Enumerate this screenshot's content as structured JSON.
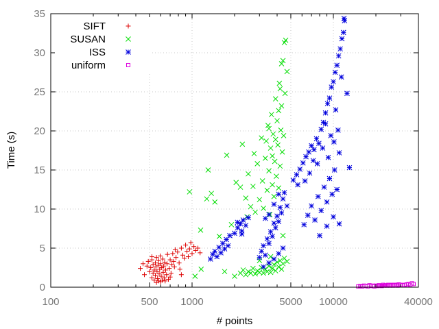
{
  "chart_data": {
    "type": "scatter",
    "title": "",
    "xlabel": "# points",
    "ylabel": "Time (s)",
    "xscale": "log",
    "xlim": [
      100,
      40000
    ],
    "ylim": [
      0,
      35
    ],
    "xticks": [
      100,
      500,
      1000,
      5000,
      10000,
      40000
    ],
    "xtick_labels": [
      "100",
      "500",
      "1000",
      "5000",
      "10000",
      "40000"
    ],
    "yticks": [
      0,
      5,
      10,
      15,
      20,
      25,
      30,
      35
    ],
    "ytick_labels": [
      "0",
      "5",
      "10",
      "15",
      "20",
      "25",
      "30",
      "35"
    ],
    "grid": true,
    "legend_position": "top-left",
    "series": [
      {
        "name": "SIFT",
        "marker": "plus",
        "color": "#dd0000",
        "points": [
          [
            430,
            2.4
          ],
          [
            450,
            3.0
          ],
          [
            460,
            1.6
          ],
          [
            480,
            2.7
          ],
          [
            490,
            3.3
          ],
          [
            500,
            2.0
          ],
          [
            510,
            2.5
          ],
          [
            520,
            1.2
          ],
          [
            520,
            3.5
          ],
          [
            530,
            1.8
          ],
          [
            530,
            2.9
          ],
          [
            540,
            2.2
          ],
          [
            540,
            0.9
          ],
          [
            550,
            3.1
          ],
          [
            550,
            1.5
          ],
          [
            555,
            2.6
          ],
          [
            560,
            0.6
          ],
          [
            560,
            3.8
          ],
          [
            565,
            2.0
          ],
          [
            570,
            1.1
          ],
          [
            575,
            2.8
          ],
          [
            580,
            0.8
          ],
          [
            580,
            3.4
          ],
          [
            585,
            1.7
          ],
          [
            590,
            2.3
          ],
          [
            595,
            4.0
          ],
          [
            600,
            0.7
          ],
          [
            600,
            3.0
          ],
          [
            605,
            1.4
          ],
          [
            610,
            2.5
          ],
          [
            615,
            0.9
          ],
          [
            620,
            3.6
          ],
          [
            625,
            1.9
          ],
          [
            630,
            2.7
          ],
          [
            635,
            1.2
          ],
          [
            640,
            3.2
          ],
          [
            645,
            0.8
          ],
          [
            650,
            2.2
          ],
          [
            660,
            1.6
          ],
          [
            665,
            3.0
          ],
          [
            670,
            4.2
          ],
          [
            680,
            1.0
          ],
          [
            690,
            2.4
          ],
          [
            700,
            3.5
          ],
          [
            710,
            1.8
          ],
          [
            720,
            2.9
          ],
          [
            730,
            4.3
          ],
          [
            740,
            3.3
          ],
          [
            750,
            2.6
          ],
          [
            760,
            4.8
          ],
          [
            770,
            3.8
          ],
          [
            790,
            4.5
          ],
          [
            810,
            3.1
          ],
          [
            820,
            2.3
          ],
          [
            840,
            5.0
          ],
          [
            860,
            4.1
          ],
          [
            880,
            3.7
          ],
          [
            900,
            5.4
          ],
          [
            920,
            4.6
          ],
          [
            940,
            3.9
          ],
          [
            960,
            4.9
          ],
          [
            980,
            5.7
          ],
          [
            1000,
            4.3
          ],
          [
            1030,
            5.2
          ],
          [
            1060,
            4.7
          ],
          [
            1100,
            5.0
          ],
          [
            1140,
            4.4
          ],
          [
            840,
            1.6
          ],
          [
            700,
            1.3
          ],
          [
            520,
            3.9
          ]
        ]
      },
      {
        "name": "SUSAN",
        "marker": "cross",
        "color": "#00dd00",
        "points": [
          [
            960,
            12.2
          ],
          [
            1050,
            1.4
          ],
          [
            1160,
            2.3
          ],
          [
            1150,
            7.3
          ],
          [
            1270,
            11.3
          ],
          [
            1300,
            15.0
          ],
          [
            1370,
            12.0
          ],
          [
            1450,
            10.9
          ],
          [
            1560,
            6.5
          ],
          [
            1760,
            16.9
          ],
          [
            1900,
            8.0
          ],
          [
            2050,
            13.4
          ],
          [
            2200,
            12.8
          ],
          [
            2270,
            18.3
          ],
          [
            2400,
            11.4
          ],
          [
            2450,
            9.0
          ],
          [
            2500,
            14.5
          ],
          [
            2600,
            10.3
          ],
          [
            2700,
            12.9
          ],
          [
            2750,
            17.1
          ],
          [
            2800,
            9.6
          ],
          [
            2900,
            15.8
          ],
          [
            3000,
            11.2
          ],
          [
            3100,
            19.1
          ],
          [
            3150,
            13.6
          ],
          [
            3200,
            10.1
          ],
          [
            3300,
            16.5
          ],
          [
            3350,
            18.7
          ],
          [
            3400,
            12.4
          ],
          [
            3450,
            20.7
          ],
          [
            3500,
            14.9
          ],
          [
            3550,
            9.3
          ],
          [
            3600,
            17.8
          ],
          [
            3650,
            22.1
          ],
          [
            3700,
            13.1
          ],
          [
            3750,
            19.6
          ],
          [
            3800,
            11.6
          ],
          [
            3850,
            16.1
          ],
          [
            3900,
            24.1
          ],
          [
            3950,
            14.2
          ],
          [
            4000,
            21.3
          ],
          [
            4050,
            18.2
          ],
          [
            4100,
            12.7
          ],
          [
            4150,
            26.1
          ],
          [
            4200,
            15.5
          ],
          [
            4250,
            20.1
          ],
          [
            4300,
            23.2
          ],
          [
            4350,
            17.3
          ],
          [
            4400,
            29.0
          ],
          [
            4450,
            19.4
          ],
          [
            4500,
            31.3
          ],
          [
            4550,
            24.8
          ],
          [
            4600,
            31.6
          ],
          [
            4700,
            27.6
          ],
          [
            4300,
            28.6
          ],
          [
            4200,
            25.4
          ],
          [
            4100,
            22.6
          ],
          [
            3900,
            18.9
          ],
          [
            3700,
            16.8
          ],
          [
            3500,
            20.3
          ],
          [
            2200,
            1.8
          ],
          [
            2300,
            2.2
          ],
          [
            2400,
            1.6
          ],
          [
            2500,
            2.0
          ],
          [
            2600,
            1.8
          ],
          [
            2700,
            2.4
          ],
          [
            2800,
            1.7
          ],
          [
            2900,
            2.1
          ],
          [
            3000,
            1.9
          ],
          [
            3100,
            2.5
          ],
          [
            3200,
            1.8
          ],
          [
            3300,
            2.3
          ],
          [
            3400,
            2.0
          ],
          [
            3500,
            2.7
          ],
          [
            3600,
            1.9
          ],
          [
            3700,
            2.4
          ],
          [
            3800,
            2.9
          ],
          [
            3900,
            2.1
          ],
          [
            4000,
            3.2
          ],
          [
            4100,
            2.6
          ],
          [
            4200,
            3.4
          ],
          [
            4300,
            2.3
          ],
          [
            4400,
            3.0
          ],
          [
            4500,
            3.7
          ],
          [
            4700,
            3.3
          ],
          [
            2000,
            1.4
          ],
          [
            1700,
            2.0
          ],
          [
            3000,
            3.4
          ],
          [
            3600,
            3.9
          ],
          [
            4400,
            6.6
          ]
        ]
      },
      {
        "name": "ISS",
        "marker": "star",
        "color": "#0000dd",
        "points": [
          [
            1350,
            3.6
          ],
          [
            1400,
            4.2
          ],
          [
            1450,
            4.6
          ],
          [
            1500,
            3.9
          ],
          [
            1550,
            5.1
          ],
          [
            1600,
            4.4
          ],
          [
            1650,
            5.6
          ],
          [
            1700,
            4.9
          ],
          [
            1750,
            6.1
          ],
          [
            1800,
            5.3
          ],
          [
            1850,
            6.6
          ],
          [
            2000,
            6.9
          ],
          [
            2100,
            7.6
          ],
          [
            2200,
            8.1
          ],
          [
            2250,
            7.2
          ],
          [
            2300,
            8.6
          ],
          [
            2400,
            7.9
          ],
          [
            2500,
            8.9
          ],
          [
            2100,
            8.3
          ],
          [
            2250,
            6.8
          ],
          [
            3000,
            3.8
          ],
          [
            3100,
            4.6
          ],
          [
            3200,
            5.3
          ],
          [
            3300,
            4.1
          ],
          [
            3400,
            6.2
          ],
          [
            3500,
            5.6
          ],
          [
            3600,
            7.1
          ],
          [
            3700,
            6.5
          ],
          [
            3800,
            8.2
          ],
          [
            3900,
            7.6
          ],
          [
            4000,
            9.1
          ],
          [
            4100,
            8.4
          ],
          [
            4200,
            10.2
          ],
          [
            4300,
            9.5
          ],
          [
            4400,
            11.3
          ],
          [
            4500,
            12.1
          ],
          [
            3500,
            9.3
          ],
          [
            3800,
            10.6
          ],
          [
            4100,
            11.9
          ],
          [
            3300,
            8.8
          ],
          [
            3200,
            2.6
          ],
          [
            3500,
            3.1
          ],
          [
            3800,
            3.6
          ],
          [
            4100,
            4.3
          ],
          [
            4400,
            5.0
          ],
          [
            4700,
            10.4
          ],
          [
            5200,
            13.7
          ],
          [
            5500,
            14.4
          ],
          [
            5800,
            15.1
          ],
          [
            6100,
            15.9
          ],
          [
            6400,
            16.7
          ],
          [
            6700,
            17.3
          ],
          [
            7000,
            18.1
          ],
          [
            7300,
            17.6
          ],
          [
            7600,
            19.0
          ],
          [
            7900,
            18.4
          ],
          [
            8200,
            20.2
          ],
          [
            8500,
            21.1
          ],
          [
            8800,
            22.3
          ],
          [
            9100,
            23.5
          ],
          [
            9400,
            24.2
          ],
          [
            9700,
            25.6
          ],
          [
            10000,
            26.3
          ],
          [
            10300,
            27.5
          ],
          [
            10600,
            28.4
          ],
          [
            10900,
            29.6
          ],
          [
            11200,
            30.5
          ],
          [
            11500,
            31.8
          ],
          [
            11800,
            32.6
          ],
          [
            12000,
            34.1
          ],
          [
            11900,
            34.4
          ],
          [
            12500,
            24.8
          ],
          [
            13000,
            15.3
          ],
          [
            6200,
            8.0
          ],
          [
            6600,
            9.2
          ],
          [
            7000,
            10.4
          ],
          [
            7400,
            8.6
          ],
          [
            7800,
            11.6
          ],
          [
            8200,
            9.8
          ],
          [
            8600,
            12.8
          ],
          [
            9000,
            10.9
          ],
          [
            9400,
            13.9
          ],
          [
            9800,
            11.9
          ],
          [
            10200,
            15.0
          ],
          [
            10600,
            12.5
          ],
          [
            11000,
            17.2
          ],
          [
            8000,
            6.6
          ],
          [
            9000,
            7.8
          ],
          [
            10000,
            9.0
          ],
          [
            11000,
            8.1
          ],
          [
            8800,
            20.9
          ],
          [
            9600,
            19.4
          ],
          [
            10400,
            22.7
          ],
          [
            6800,
            14.6
          ],
          [
            7200,
            16.2
          ],
          [
            7700,
            15.8
          ],
          [
            5600,
            13.1
          ],
          [
            6300,
            13.6
          ],
          [
            8400,
            17.8
          ],
          [
            9200,
            16.6
          ],
          [
            10100,
            18.6
          ],
          [
            10800,
            20.1
          ],
          [
            11400,
            26.9
          ]
        ]
      },
      {
        "name": "uniform",
        "marker": "square",
        "color": "#dd00dd",
        "points": [
          [
            15000,
            0.1
          ],
          [
            15500,
            0.15
          ],
          [
            16000,
            0.1
          ],
          [
            16500,
            0.2
          ],
          [
            17000,
            0.15
          ],
          [
            17500,
            0.1
          ],
          [
            18000,
            0.25
          ],
          [
            18500,
            0.15
          ],
          [
            19000,
            0.2
          ],
          [
            19500,
            0.1
          ],
          [
            20000,
            0.2
          ],
          [
            20500,
            0.15
          ],
          [
            21000,
            0.25
          ],
          [
            21500,
            0.2
          ],
          [
            22000,
            0.15
          ],
          [
            22500,
            0.3
          ],
          [
            23000,
            0.2
          ],
          [
            23500,
            0.25
          ],
          [
            24000,
            0.2
          ],
          [
            24500,
            0.3
          ],
          [
            25000,
            0.2
          ],
          [
            25500,
            0.25
          ],
          [
            26000,
            0.3
          ],
          [
            26500,
            0.2
          ],
          [
            27000,
            0.3
          ],
          [
            27500,
            0.25
          ],
          [
            28000,
            0.3
          ],
          [
            28500,
            0.2
          ],
          [
            29000,
            0.35
          ],
          [
            30000,
            0.3
          ],
          [
            31000,
            0.25
          ],
          [
            32000,
            0.3
          ],
          [
            33000,
            0.35
          ],
          [
            34000,
            0.4
          ],
          [
            35000,
            0.3
          ],
          [
            36000,
            0.5
          ],
          [
            37000,
            0.4
          ]
        ]
      }
    ]
  }
}
